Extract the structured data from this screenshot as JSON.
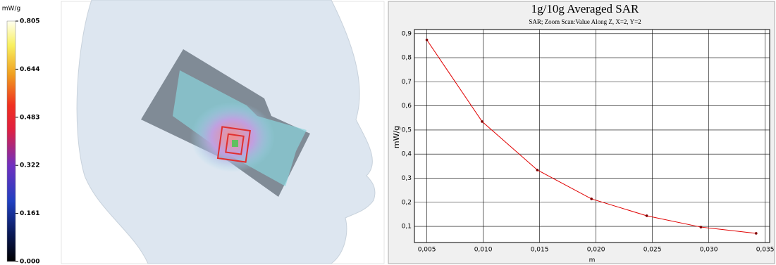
{
  "colorbar": {
    "title": "mW/g",
    "lim": [
      0,
      0.805
    ],
    "ticks": [
      {
        "value": 0,
        "label": "0.000"
      },
      0.161,
      0.322,
      0.483,
      0.644,
      0.805
    ]
  },
  "chart_data": {
    "type": "line",
    "title": "1g/10g Averaged SAR",
    "subtitle": "SAR; Zoom Scan:Value Along Z, X=2, Y=2",
    "x_label": "m",
    "y_label": "mW/g",
    "x": [
      0.005,
      0.0099,
      0.0148,
      0.0196,
      0.0245,
      0.0293,
      0.0342
    ],
    "series": [
      {
        "name": "SAR",
        "color": "#e00000",
        "values": [
          0.874,
          0.535,
          0.334,
          0.214,
          0.144,
          0.097,
          0.071
        ]
      }
    ],
    "xlim": [
      0.0039,
      0.0354
    ],
    "ylim": [
      0.033,
      0.917
    ],
    "xticks": [
      {
        "value": 0.005,
        "label": "0,005"
      },
      {
        "value": 0.01,
        "label": "0,010"
      },
      {
        "value": 0.015,
        "label": "0,015"
      },
      {
        "value": 0.02,
        "label": "0,020"
      },
      {
        "value": 0.025,
        "label": "0,025"
      },
      {
        "value": 0.03,
        "label": "0,030"
      },
      {
        "value": 0.035,
        "label": "0,035"
      }
    ],
    "yticks": [
      {
        "value": 0.1,
        "label": "0,1"
      },
      {
        "value": 0.2,
        "label": "0,2"
      },
      {
        "value": 0.3,
        "label": "0,3"
      },
      {
        "value": 0.4,
        "label": "0,4"
      },
      {
        "value": 0.5,
        "label": "0,5"
      },
      {
        "value": 0.6,
        "label": "0,6"
      },
      {
        "value": 0.7,
        "label": "0,7"
      },
      {
        "value": 0.8,
        "label": "0,8"
      },
      {
        "value": 0.9,
        "label": "0,9"
      }
    ],
    "grid": true
  }
}
